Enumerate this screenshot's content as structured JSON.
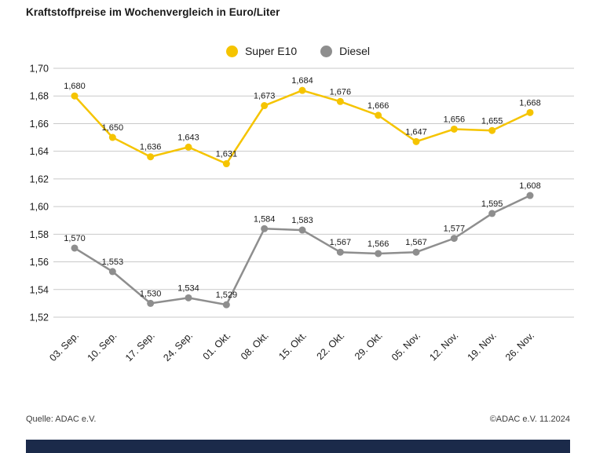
{
  "page": {
    "title": "Kraftstoffpreise im Wochenvergleich in Euro/Liter",
    "source_left": "Quelle: ADAC e.V.",
    "source_right": "©ADAC e.V. 11.2024"
  },
  "chart_data": {
    "type": "line",
    "title": "Kraftstoffpreise im Wochenvergleich in Euro/Liter",
    "categories": [
      "03. Sep.",
      "10. Sep.",
      "17. Sep.",
      "24. Sep.",
      "01. Okt.",
      "08. Okt.",
      "15. Okt.",
      "22. Okt.",
      "29. Okt.",
      "05. Nov.",
      "12. Nov.",
      "19. Nov.",
      "26. Nov."
    ],
    "series": [
      {
        "name": "Super E10",
        "color": "#F5C400",
        "values": [
          1.68,
          1.65,
          1.636,
          1.643,
          1.631,
          1.673,
          1.684,
          1.676,
          1.666,
          1.647,
          1.656,
          1.655,
          1.668
        ]
      },
      {
        "name": "Diesel",
        "color": "#8E8E8E",
        "values": [
          1.57,
          1.553,
          1.53,
          1.534,
          1.529,
          1.584,
          1.583,
          1.567,
          1.566,
          1.567,
          1.577,
          1.595,
          1.608
        ]
      }
    ],
    "ylim": [
      1.52,
      1.7
    ],
    "ytick_step": 0.02,
    "ytick_labels": [
      "1,52",
      "1,54",
      "1,56",
      "1,58",
      "1,60",
      "1,62",
      "1,64",
      "1,66",
      "1,68",
      "1,70"
    ],
    "grid": true,
    "decimal_separator": ",",
    "value_label_decimals": 3,
    "legend_position": "top-center",
    "xlabel": "",
    "ylabel": ""
  },
  "colors": {
    "super_e10": "#F5C400",
    "diesel": "#8E8E8E",
    "grid": "#c9c9c9",
    "text": "#1a1a1a",
    "footer_bar": "#1b2a4a"
  }
}
